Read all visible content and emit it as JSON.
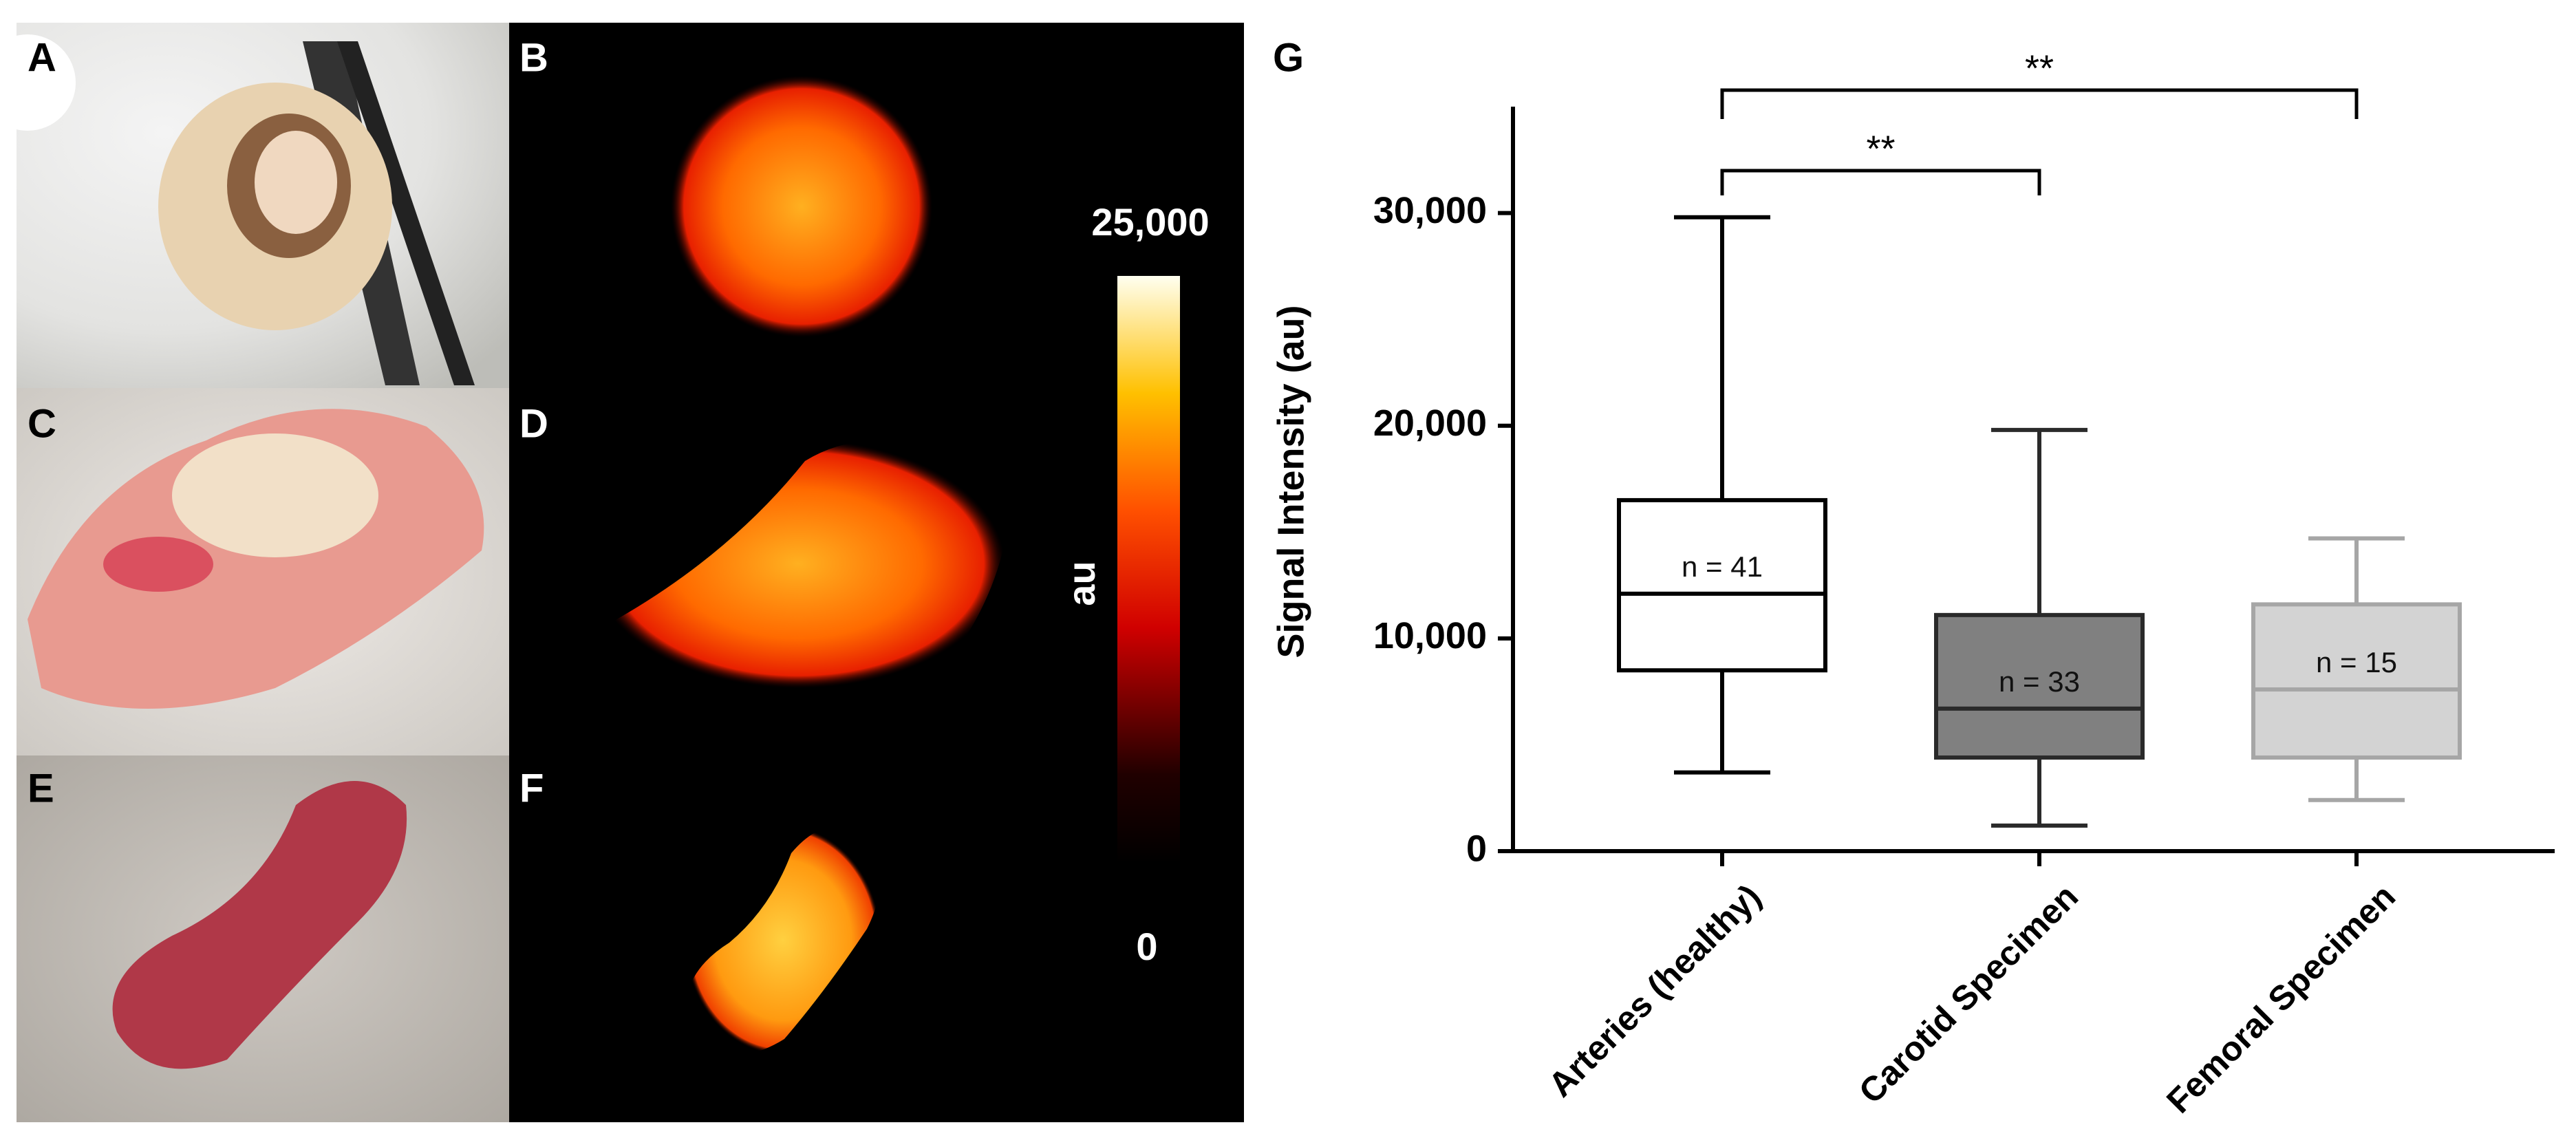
{
  "panels": {
    "labels": [
      "A",
      "B",
      "C",
      "D",
      "E",
      "F"
    ]
  },
  "colorbar": {
    "max_label": "25,000",
    "min_label": "0",
    "unit": "au"
  },
  "chart_data": {
    "type": "box",
    "panel_label": "G",
    "ylabel": "Signal  Intensity (au)",
    "categories": [
      "Arteries (healthy)",
      "Carotid Specimen",
      "Femoral Specimen"
    ],
    "boxes": [
      {
        "min": 3700,
        "q1": 8500,
        "median": 12100,
        "q3": 16500,
        "max": 29800
      },
      {
        "min": 1200,
        "q1": 4400,
        "median": 6700,
        "q3": 11100,
        "max": 19800
      },
      {
        "min": 2400,
        "q1": 4400,
        "median": 7600,
        "q3": 11600,
        "max": 14700
      }
    ],
    "colors": [
      "#ffffff",
      "#808080",
      "#d3d3d3"
    ],
    "edge_colors": [
      "#000000",
      "#2a2a2a",
      "#a6a6a6"
    ],
    "n_labels": [
      "n  = 41",
      "n  = 33",
      "n  = 15"
    ],
    "significance": [
      {
        "pair": [
          0,
          1
        ],
        "label": "**"
      },
      {
        "pair": [
          0,
          2
        ],
        "label": "**"
      }
    ],
    "ylim": [
      0,
      35000
    ],
    "yticks": [
      0,
      {
        "value": 10000,
        "label": "10,000"
      },
      {
        "value": 20000,
        "label": "20,000"
      },
      {
        "value": 30000,
        "label": "30,000"
      }
    ]
  }
}
